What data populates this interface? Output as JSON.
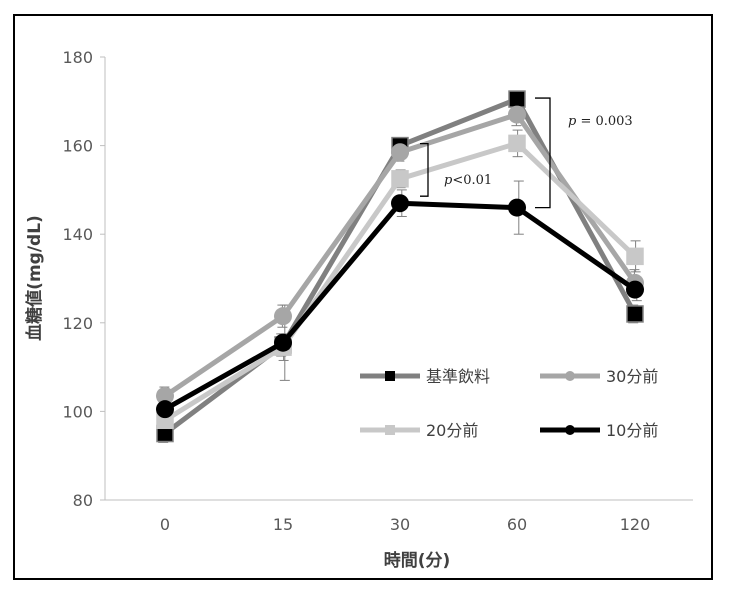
{
  "chart_data": {
    "type": "line",
    "xlabel": "時間(分)",
    "ylabel": "血糖値(mg/dL)",
    "categories": [
      "0",
      "15",
      "30",
      "60",
      "120"
    ],
    "ylim": [
      80,
      180
    ],
    "yticks": [
      80,
      100,
      120,
      140,
      160,
      180
    ],
    "grid": false,
    "legend_position": "inside lower-right",
    "series": [
      {
        "name": "基準飲料",
        "marker": "square",
        "color": "#808080",
        "lineWidth": 5,
        "values": [
          95,
          115,
          160,
          170.5,
          122
        ],
        "errors": [
          2,
          2.5,
          1.5,
          1.5,
          2
        ]
      },
      {
        "name": "30分前",
        "marker": "circle",
        "color": "#a6a6a6",
        "lineWidth": 5,
        "values": [
          103.5,
          121.5,
          158.5,
          167,
          129
        ],
        "errors": [
          2,
          2.5,
          2,
          2.5,
          3
        ]
      },
      {
        "name": "20分前",
        "marker": "square",
        "color": "#c8c8c8",
        "lineWidth": 5,
        "values": [
          98,
          114.5,
          152.5,
          160.5,
          135
        ],
        "errors": [
          2.5,
          3,
          2,
          3,
          3.5
        ]
      },
      {
        "name": "10分前",
        "marker": "circle",
        "color": "#000000",
        "lineWidth": 5,
        "values": [
          100.5,
          115.5,
          147,
          146,
          127.5
        ],
        "errors": [
          2,
          8.5,
          3,
          6,
          2.5
        ]
      }
    ],
    "annotations": [
      {
        "p": "p",
        "rest": "<0.01"
      },
      {
        "p": "p",
        "rest": "= 0.003"
      }
    ]
  }
}
